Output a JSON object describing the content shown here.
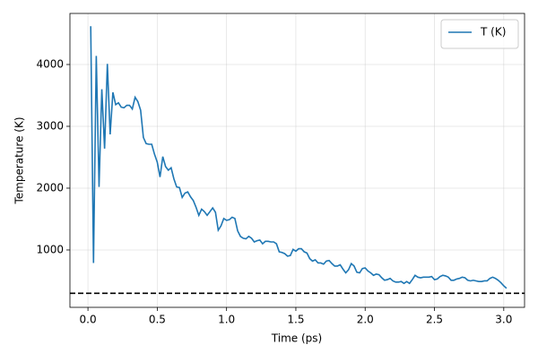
{
  "chart_data": {
    "type": "line",
    "xlabel": "Time (ps)",
    "ylabel": "Temperature (K)",
    "x": [
      0.02,
      0.04,
      0.06,
      0.08,
      0.1,
      0.12,
      0.14,
      0.16,
      0.18,
      0.2,
      0.22,
      0.24,
      0.26,
      0.28,
      0.3,
      0.32,
      0.34,
      0.36,
      0.38,
      0.4,
      0.42,
      0.44,
      0.46,
      0.48,
      0.5,
      0.52,
      0.54,
      0.56,
      0.58,
      0.6,
      0.62,
      0.64,
      0.66,
      0.68,
      0.7,
      0.72,
      0.74,
      0.76,
      0.78,
      0.8,
      0.82,
      0.84,
      0.86,
      0.88,
      0.9,
      0.92,
      0.94,
      0.96,
      0.98,
      1.0,
      1.02,
      1.04,
      1.06,
      1.08,
      1.1,
      1.12,
      1.14,
      1.16,
      1.18,
      1.2,
      1.22,
      1.24,
      1.26,
      1.28,
      1.3,
      1.32,
      1.34,
      1.36,
      1.38,
      1.4,
      1.42,
      1.44,
      1.46,
      1.48,
      1.5,
      1.52,
      1.54,
      1.56,
      1.58,
      1.6,
      1.62,
      1.64,
      1.66,
      1.68,
      1.7,
      1.72,
      1.74,
      1.76,
      1.78,
      1.8,
      1.82,
      1.84,
      1.86,
      1.88,
      1.9,
      1.92,
      1.94,
      1.96,
      1.98,
      2.0,
      2.02,
      2.04,
      2.06,
      2.08,
      2.1,
      2.12,
      2.14,
      2.16,
      2.18,
      2.2,
      2.22,
      2.24,
      2.26,
      2.28,
      2.3,
      2.32,
      2.34,
      2.36,
      2.38,
      2.4,
      2.42,
      2.44,
      2.46,
      2.48,
      2.5,
      2.52,
      2.54,
      2.56,
      2.58,
      2.6,
      2.62,
      2.64,
      2.66,
      2.68,
      2.7,
      2.72,
      2.74,
      2.76,
      2.78,
      2.8,
      2.82,
      2.84,
      2.86,
      2.88,
      2.9,
      2.92,
      2.94,
      2.96,
      2.98,
      3.0,
      3.02
    ],
    "series": [
      {
        "name": "T (K)",
        "color": "#1f77b4",
        "values": [
          4620,
          790,
          4140,
          2020,
          3600,
          2640,
          4010,
          2870,
          3550,
          3350,
          3380,
          3310,
          3300,
          3340,
          3340,
          3280,
          3470,
          3400,
          3260,
          2820,
          2720,
          2710,
          2710,
          2550,
          2420,
          2180,
          2510,
          2350,
          2290,
          2330,
          2150,
          2020,
          2010,
          1850,
          1920,
          1940,
          1860,
          1800,
          1690,
          1560,
          1660,
          1620,
          1560,
          1620,
          1680,
          1610,
          1320,
          1390,
          1510,
          1480,
          1490,
          1530,
          1510,
          1310,
          1220,
          1190,
          1180,
          1220,
          1190,
          1130,
          1150,
          1160,
          1100,
          1140,
          1140,
          1130,
          1130,
          1100,
          970,
          960,
          940,
          900,
          910,
          1010,
          980,
          1020,
          1020,
          970,
          950,
          860,
          820,
          840,
          790,
          790,
          770,
          820,
          830,
          780,
          740,
          740,
          760,
          690,
          630,
          680,
          780,
          740,
          640,
          630,
          700,
          710,
          660,
          630,
          590,
          610,
          600,
          550,
          510,
          520,
          540,
          500,
          480,
          480,
          490,
          460,
          490,
          460,
          520,
          590,
          560,
          550,
          560,
          560,
          560,
          570,
          520,
          530,
          570,
          590,
          580,
          560,
          510,
          510,
          530,
          540,
          560,
          550,
          510,
          500,
          510,
          500,
          490,
          490,
          500,
          500,
          540,
          560,
          540,
          510,
          470,
          420,
          380
        ]
      }
    ],
    "hline": {
      "value": 300,
      "color": "#000000"
    },
    "xlim": [
      -0.13,
      3.15
    ],
    "ylim": [
      72,
      4826
    ],
    "xticks": [
      {
        "value": 0,
        "label": "0.0"
      },
      0.5,
      {
        "value": 1,
        "label": "1.0"
      },
      1.5,
      {
        "value": 2,
        "label": "2.0"
      },
      2.5,
      {
        "value": 3,
        "label": "3.0"
      }
    ],
    "yticks": [
      1000,
      2000,
      3000,
      4000
    ],
    "grid": true,
    "legend": "upper right"
  }
}
